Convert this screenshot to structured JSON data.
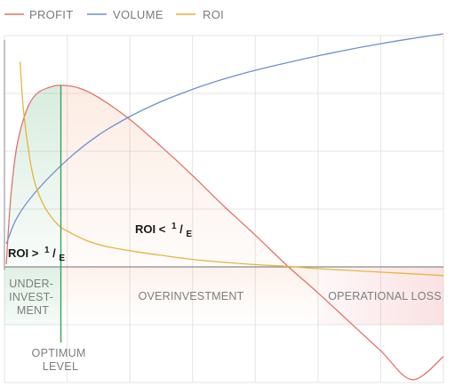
{
  "chart_data": {
    "type": "line",
    "legend": {
      "position": "top-left",
      "entries": [
        {
          "name": "PROFIT",
          "color": "#e0736a"
        },
        {
          "name": "VOLUME",
          "color": "#6f8fd2"
        },
        {
          "name": "ROI",
          "color": "#e6b43c"
        }
      ]
    },
    "grid": true,
    "xlim": [
      0,
      7
    ],
    "ylim": [
      -2,
      4
    ],
    "series": [
      {
        "name": "PROFIT",
        "color": "#e0736a",
        "x": [
          0.03,
          0.1,
          0.2,
          0.35,
          0.5,
          0.7,
          0.9,
          1.2,
          1.5,
          2.0,
          2.5,
          3.0,
          3.5,
          4.0,
          4.5,
          5.0,
          5.5,
          6.0,
          6.5,
          7.0
        ],
        "y": [
          0.05,
          1.2,
          2.1,
          2.7,
          2.98,
          3.1,
          3.14,
          3.09,
          2.93,
          2.55,
          2.08,
          1.58,
          1.05,
          0.55,
          0.03,
          -0.45,
          -0.95,
          -1.45,
          -1.95,
          -1.55
        ]
      },
      {
        "name": "VOLUME",
        "color": "#6f8fd2",
        "x": [
          0.03,
          0.2,
          0.5,
          1.0,
          1.5,
          2.0,
          2.5,
          3.0,
          3.5,
          4.0,
          4.5,
          5.0,
          5.5,
          6.0,
          6.5,
          7.0
        ],
        "y": [
          0.4,
          0.85,
          1.3,
          1.85,
          2.28,
          2.6,
          2.86,
          3.07,
          3.25,
          3.4,
          3.53,
          3.65,
          3.76,
          3.86,
          3.95,
          4.03
        ]
      },
      {
        "name": "ROI",
        "color": "#e6b43c",
        "x": [
          0.25,
          0.3,
          0.4,
          0.5,
          0.65,
          0.85,
          1.0,
          1.3,
          1.6,
          2.0,
          2.5,
          3.0,
          3.5,
          4.0,
          4.5,
          5.0,
          5.5,
          6.0,
          6.5,
          7.0
        ],
        "y": [
          3.55,
          2.75,
          1.9,
          1.4,
          1.02,
          0.73,
          0.62,
          0.46,
          0.36,
          0.28,
          0.2,
          0.13,
          0.08,
          0.04,
          0.01,
          -0.03,
          -0.06,
          -0.09,
          -0.12,
          -0.15
        ]
      }
    ],
    "regions": [
      {
        "label_lines": [
          "UNDER-",
          "INVEST-",
          "MENT"
        ],
        "x_range": [
          0,
          0.9
        ]
      },
      {
        "label_lines": [
          "OVERINVESTMENT"
        ],
        "x_range": [
          0.9,
          5.0
        ]
      },
      {
        "label_lines": [
          "OPERATIONAL LOSS"
        ],
        "x_range": [
          5.0,
          7.0
        ]
      }
    ],
    "optimum": {
      "x": 0.9,
      "label_lines": [
        "OPTIMUM",
        "LEVEL"
      ]
    },
    "annotations": [
      {
        "text": "ROI >",
        "sup": "1",
        "slash": "/",
        "sub": "E"
      },
      {
        "text": "ROI <",
        "sup": "1",
        "slash": "/",
        "sub": "E"
      }
    ]
  }
}
